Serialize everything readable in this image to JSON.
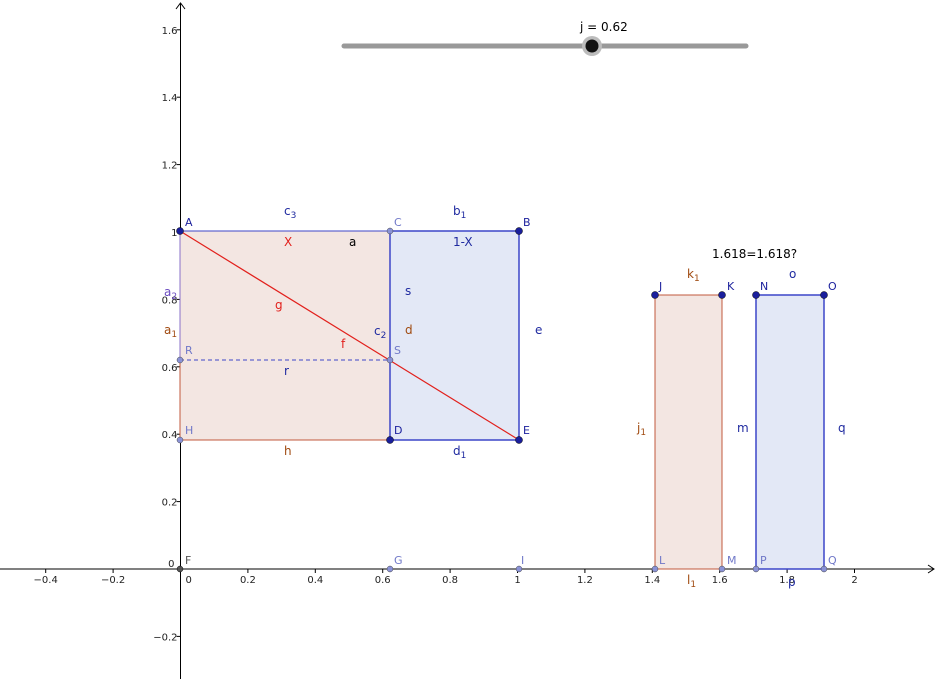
{
  "slider": {
    "label": "j = 0.62",
    "value": 0.62,
    "min": 0,
    "max": 1
  },
  "question": "1.618=1.618?",
  "axes": {
    "x_ticks": [
      "−0.4",
      "−0.2",
      "0",
      "0.2",
      "0.4",
      "0.6",
      "0.8",
      "1",
      "1.2",
      "1.4",
      "1.6",
      "1.8",
      "2"
    ],
    "y_ticks": [
      "−0.2",
      "0.2",
      "0.4",
      "0.6",
      "0.8",
      "1",
      "1.2",
      "1.4",
      "1.6"
    ],
    "x_range": [
      -0.53,
      2.22
    ],
    "y_range": [
      -0.32,
      1.67
    ],
    "grid": false
  },
  "colors": {
    "red": "#e2201c",
    "red_fill": "#f3e6e2",
    "red_edge": "#c0583c",
    "blue": "#1f2aa0",
    "blue_fill": "#e3e8f6",
    "blue_edge": "#3c46c8",
    "point_dark": "#1a1f9c",
    "point_light": "#8a92d6",
    "brown": "#a04a10",
    "axis": "#000000",
    "slider_track": "#999999"
  },
  "points": {
    "A": "A",
    "B": "B",
    "C": "C",
    "D": "D",
    "E": "E",
    "F": "F",
    "G": "G",
    "H": "H",
    "I": "I",
    "J": "J",
    "K": "K",
    "L": "L",
    "M": "M",
    "N": "N",
    "O": "O",
    "P": "P",
    "Q": "Q",
    "R": "R",
    "S": "S"
  },
  "segment_labels": {
    "c3": "c",
    "c3_sub": "3",
    "b1": "b",
    "b1_sub": "1",
    "X": "X",
    "a": "a",
    "one_minus_X": "1-X",
    "a2": "a",
    "a2_sub": "2",
    "a1": "a",
    "a1_sub": "1",
    "g": "g",
    "s": "s",
    "c2": "c",
    "c2_sub": "2",
    "d": "d",
    "f": "f",
    "e": "e",
    "r": "r",
    "h": "h",
    "d1": "d",
    "d1_sub": "1",
    "k1": "k",
    "k1_sub": "1",
    "o": "o",
    "j1": "j",
    "j1_sub": "1",
    "m": "m",
    "q": "q",
    "l1": "l",
    "l1_sub": "1",
    "p": "p"
  }
}
